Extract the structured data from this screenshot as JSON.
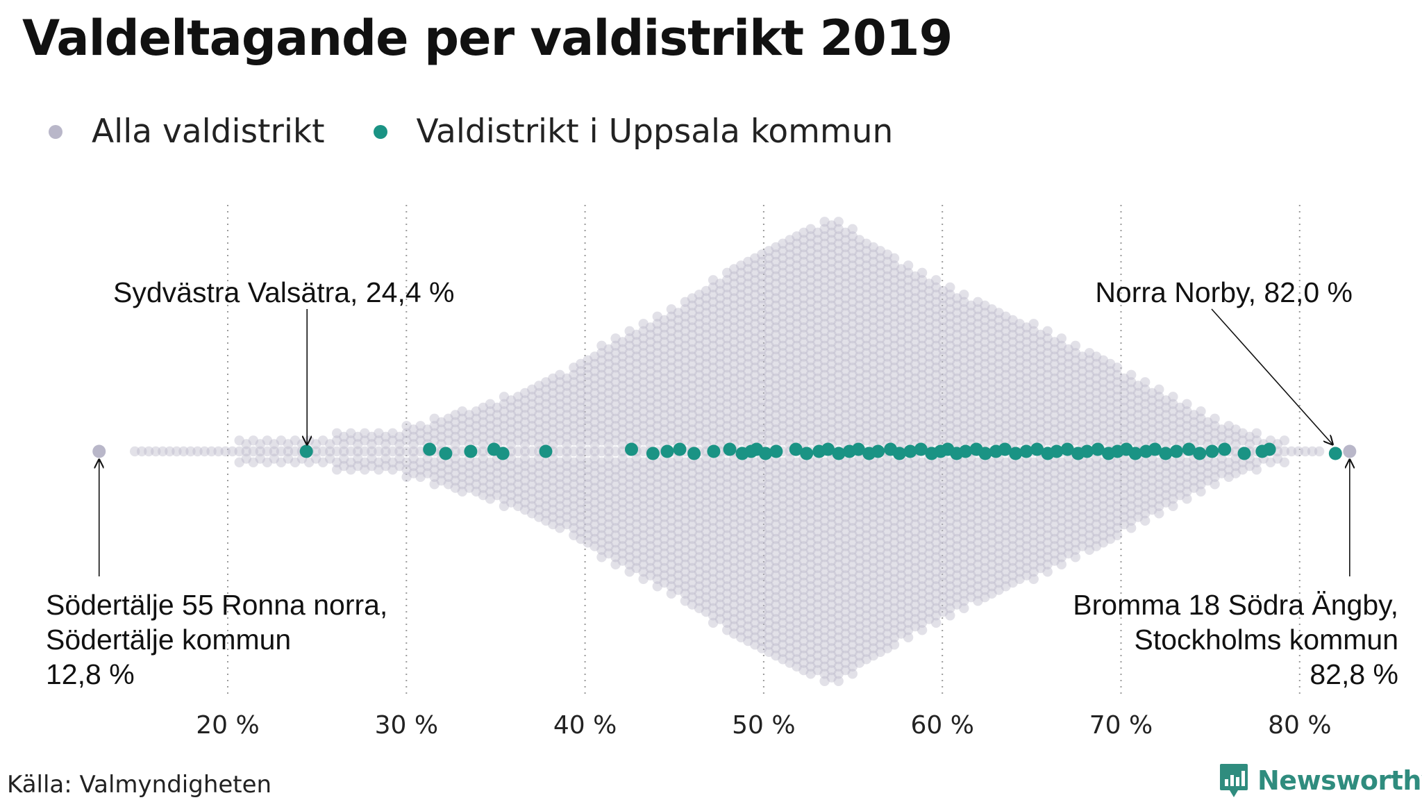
{
  "title": "Valdeltagande per valdistrikt 2019",
  "legend": {
    "all_label": "Alla valdistrikt",
    "all_color": "#b9b7c9",
    "uppsala_label": "Valdistrikt i Uppsala kommun",
    "uppsala_color": "#1a9384"
  },
  "chart_data": {
    "type": "scatter",
    "subtype": "beeswarm",
    "x_unit": "%",
    "xlim": [
      11,
      84
    ],
    "x_ticks": [
      20,
      30,
      40,
      50,
      60,
      70,
      80
    ],
    "x_tick_labels": [
      "20 %",
      "30 %",
      "40 %",
      "50 %",
      "60 %",
      "70 %",
      "80 %"
    ],
    "grid": "vertical dotted",
    "legend_position": "top-left",
    "series": [
      {
        "name": "Alla valdistrikt",
        "color": "#b9b7c9",
        "distribution": "diamond-shaped beeswarm, peak near 54 %"
      },
      {
        "name": "Valdistrikt i Uppsala kommun",
        "color": "#1a9384",
        "values": [
          24.4,
          31.3,
          32.2,
          33.6,
          34.9,
          35.4,
          37.8,
          42.6,
          43.8,
          44.6,
          45.3,
          46.1,
          47.2,
          48.1,
          48.8,
          49.3,
          49.6,
          50.1,
          50.7,
          51.8,
          52.4,
          53.1,
          53.6,
          54.2,
          54.8,
          55.3,
          55.9,
          56.4,
          57.1,
          57.6,
          58.2,
          58.8,
          59.4,
          59.9,
          60.3,
          60.8,
          61.3,
          61.9,
          62.4,
          63.0,
          63.5,
          64.1,
          64.7,
          65.3,
          65.9,
          66.4,
          67.0,
          67.6,
          68.1,
          68.7,
          69.3,
          69.8,
          70.3,
          70.8,
          71.4,
          71.9,
          72.5,
          73.1,
          73.8,
          74.4,
          75.1,
          75.8,
          76.9,
          77.9,
          78.3,
          82.0
        ]
      }
    ],
    "annotations": [
      {
        "label": "Sydvästra Valsätra, 24,4 %",
        "value": 24.4
      },
      {
        "label": "Norra Norby, 82,0 %",
        "value": 82.0
      },
      {
        "line1": "Södertälje 55 Ronna norra,",
        "line2": "Södertälje kommun",
        "line3": "12,8 %",
        "value": 12.8
      },
      {
        "line1": "Bromma 18 Södra Ängby,",
        "line2": "Stockholms kommun",
        "line3": "82,8 %",
        "value": 82.8
      }
    ]
  },
  "footer": {
    "source": "Källa: Valmyndigheten",
    "brand": "Newsworthy",
    "brand_color": "#2f8c7e"
  }
}
